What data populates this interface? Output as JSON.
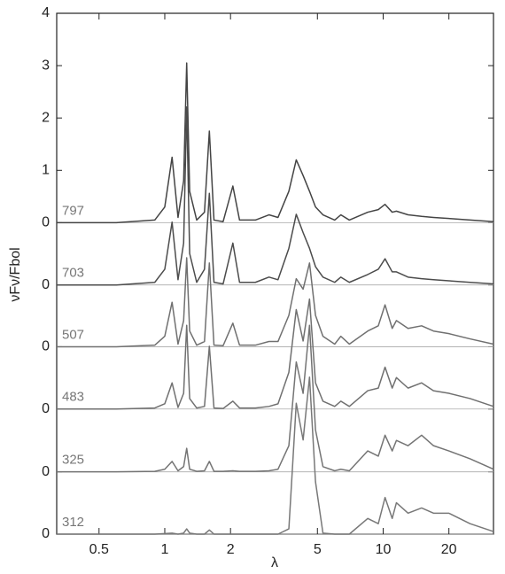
{
  "chart_data": {
    "type": "line",
    "x_label": "λ",
    "y_label": "νFν/Fbol",
    "x": [
      0.32,
      0.6,
      0.9,
      1.0,
      1.08,
      1.15,
      1.22,
      1.26,
      1.3,
      1.4,
      1.52,
      1.6,
      1.68,
      1.85,
      2.05,
      2.2,
      2.6,
      3.0,
      3.3,
      3.7,
      4.0,
      4.3,
      4.6,
      4.9,
      5.3,
      6.0,
      6.4,
      7.0,
      8.5,
      9.5,
      10.2,
      11,
      11.5,
      13,
      15,
      17,
      20,
      25,
      32
    ],
    "series": [
      {
        "name": "797",
        "color": "#444444",
        "values": [
          0,
          0,
          0.05,
          0.3,
          1.25,
          0.1,
          0.8,
          3.05,
          0.6,
          0.05,
          0.2,
          1.75,
          0.05,
          0.02,
          0.7,
          0.05,
          0.05,
          0.15,
          0.1,
          0.6,
          1.2,
          0.9,
          0.6,
          0.3,
          0.15,
          0.05,
          0.15,
          0.05,
          0.2,
          0.25,
          0.35,
          0.2,
          0.22,
          0.15,
          0.12,
          0.1,
          0.08,
          0.05,
          0.02
        ]
      },
      {
        "name": "703",
        "color": "#4c4c4c",
        "values": [
          -1.19,
          -1.19,
          -1.14,
          -0.89,
          0.01,
          -1.09,
          -0.39,
          2.21,
          -0.59,
          -1.14,
          -0.89,
          0.56,
          -1.14,
          -1.17,
          -0.39,
          -1.14,
          -1.14,
          -1.04,
          -1.09,
          -0.49,
          0.16,
          -0.19,
          -0.49,
          -0.84,
          -1.04,
          -1.14,
          -1.04,
          -1.14,
          -0.99,
          -0.89,
          -0.69,
          -0.94,
          -0.94,
          -1.04,
          -1.07,
          -1.09,
          -1.11,
          -1.14,
          -1.17
        ]
      },
      {
        "name": "507",
        "color": "#707070",
        "values": [
          -2.37,
          -2.37,
          -2.34,
          -2.17,
          -1.52,
          -2.32,
          -1.87,
          -0.67,
          -2.07,
          -2.34,
          -2.27,
          -0.77,
          -2.34,
          -2.35,
          -1.92,
          -2.34,
          -2.34,
          -2.27,
          -2.27,
          -1.77,
          -1.07,
          -1.27,
          -0.77,
          -1.77,
          -2.17,
          -2.32,
          -2.17,
          -2.32,
          -2.07,
          -1.97,
          -1.57,
          -2.02,
          -1.87,
          -2.02,
          -1.97,
          -2.07,
          -2.12,
          -2.22,
          -2.32
        ]
      },
      {
        "name": "483",
        "color": "#707070",
        "values": [
          -3.56,
          -3.56,
          -3.54,
          -3.46,
          -3.06,
          -3.53,
          -3.26,
          -1.96,
          -3.36,
          -3.54,
          -3.51,
          -2.36,
          -3.54,
          -3.55,
          -3.41,
          -3.54,
          -3.54,
          -3.51,
          -3.46,
          -2.86,
          -1.66,
          -2.26,
          -1.46,
          -3.06,
          -3.41,
          -3.51,
          -3.41,
          -3.51,
          -3.21,
          -3.16,
          -2.76,
          -3.16,
          -2.96,
          -3.16,
          -3.06,
          -3.21,
          -3.26,
          -3.36,
          -3.51
        ]
      },
      {
        "name": "325",
        "color": "#747474",
        "values": [
          -4.76,
          -4.76,
          -4.75,
          -4.71,
          -4.56,
          -4.74,
          -4.66,
          -4.31,
          -4.71,
          -4.75,
          -4.74,
          -4.56,
          -4.75,
          -4.75,
          -4.74,
          -4.75,
          -4.75,
          -4.74,
          -4.71,
          -4.26,
          -2.66,
          -3.26,
          -1.96,
          -3.96,
          -4.66,
          -4.74,
          -4.71,
          -4.74,
          -4.36,
          -4.46,
          -4.06,
          -4.36,
          -4.16,
          -4.26,
          -4.06,
          -4.26,
          -4.36,
          -4.51,
          -4.71
        ]
      },
      {
        "name": "312",
        "color": "#787878",
        "values": [
          -5.95,
          -5.95,
          -5.95,
          -5.94,
          -5.93,
          -5.95,
          -5.93,
          -5.85,
          -5.93,
          -5.95,
          -5.95,
          -5.87,
          -5.95,
          -5.95,
          -5.95,
          -5.95,
          -5.95,
          -5.95,
          -5.95,
          -5.85,
          -3.45,
          -4.15,
          -2.95,
          -4.95,
          -5.93,
          -5.95,
          -5.95,
          -5.95,
          -5.65,
          -5.75,
          -5.25,
          -5.65,
          -5.35,
          -5.55,
          -5.45,
          -5.55,
          -5.55,
          -5.75,
          -5.9
        ]
      }
    ],
    "xlim": [
      0.32,
      32
    ],
    "x_log": true,
    "xticks": [
      0.5,
      1,
      2,
      5,
      10,
      20
    ],
    "ylim": [
      -5.95,
      4
    ],
    "yticks": [
      4,
      3,
      2,
      1,
      0,
      {
        "value": -1.19,
        "label": "0"
      },
      {
        "value": -2.37,
        "label": "0"
      },
      {
        "value": -3.56,
        "label": "0"
      },
      {
        "value": -4.76,
        "label": "0"
      },
      {
        "value": -5.95,
        "label": "0"
      }
    ]
  }
}
